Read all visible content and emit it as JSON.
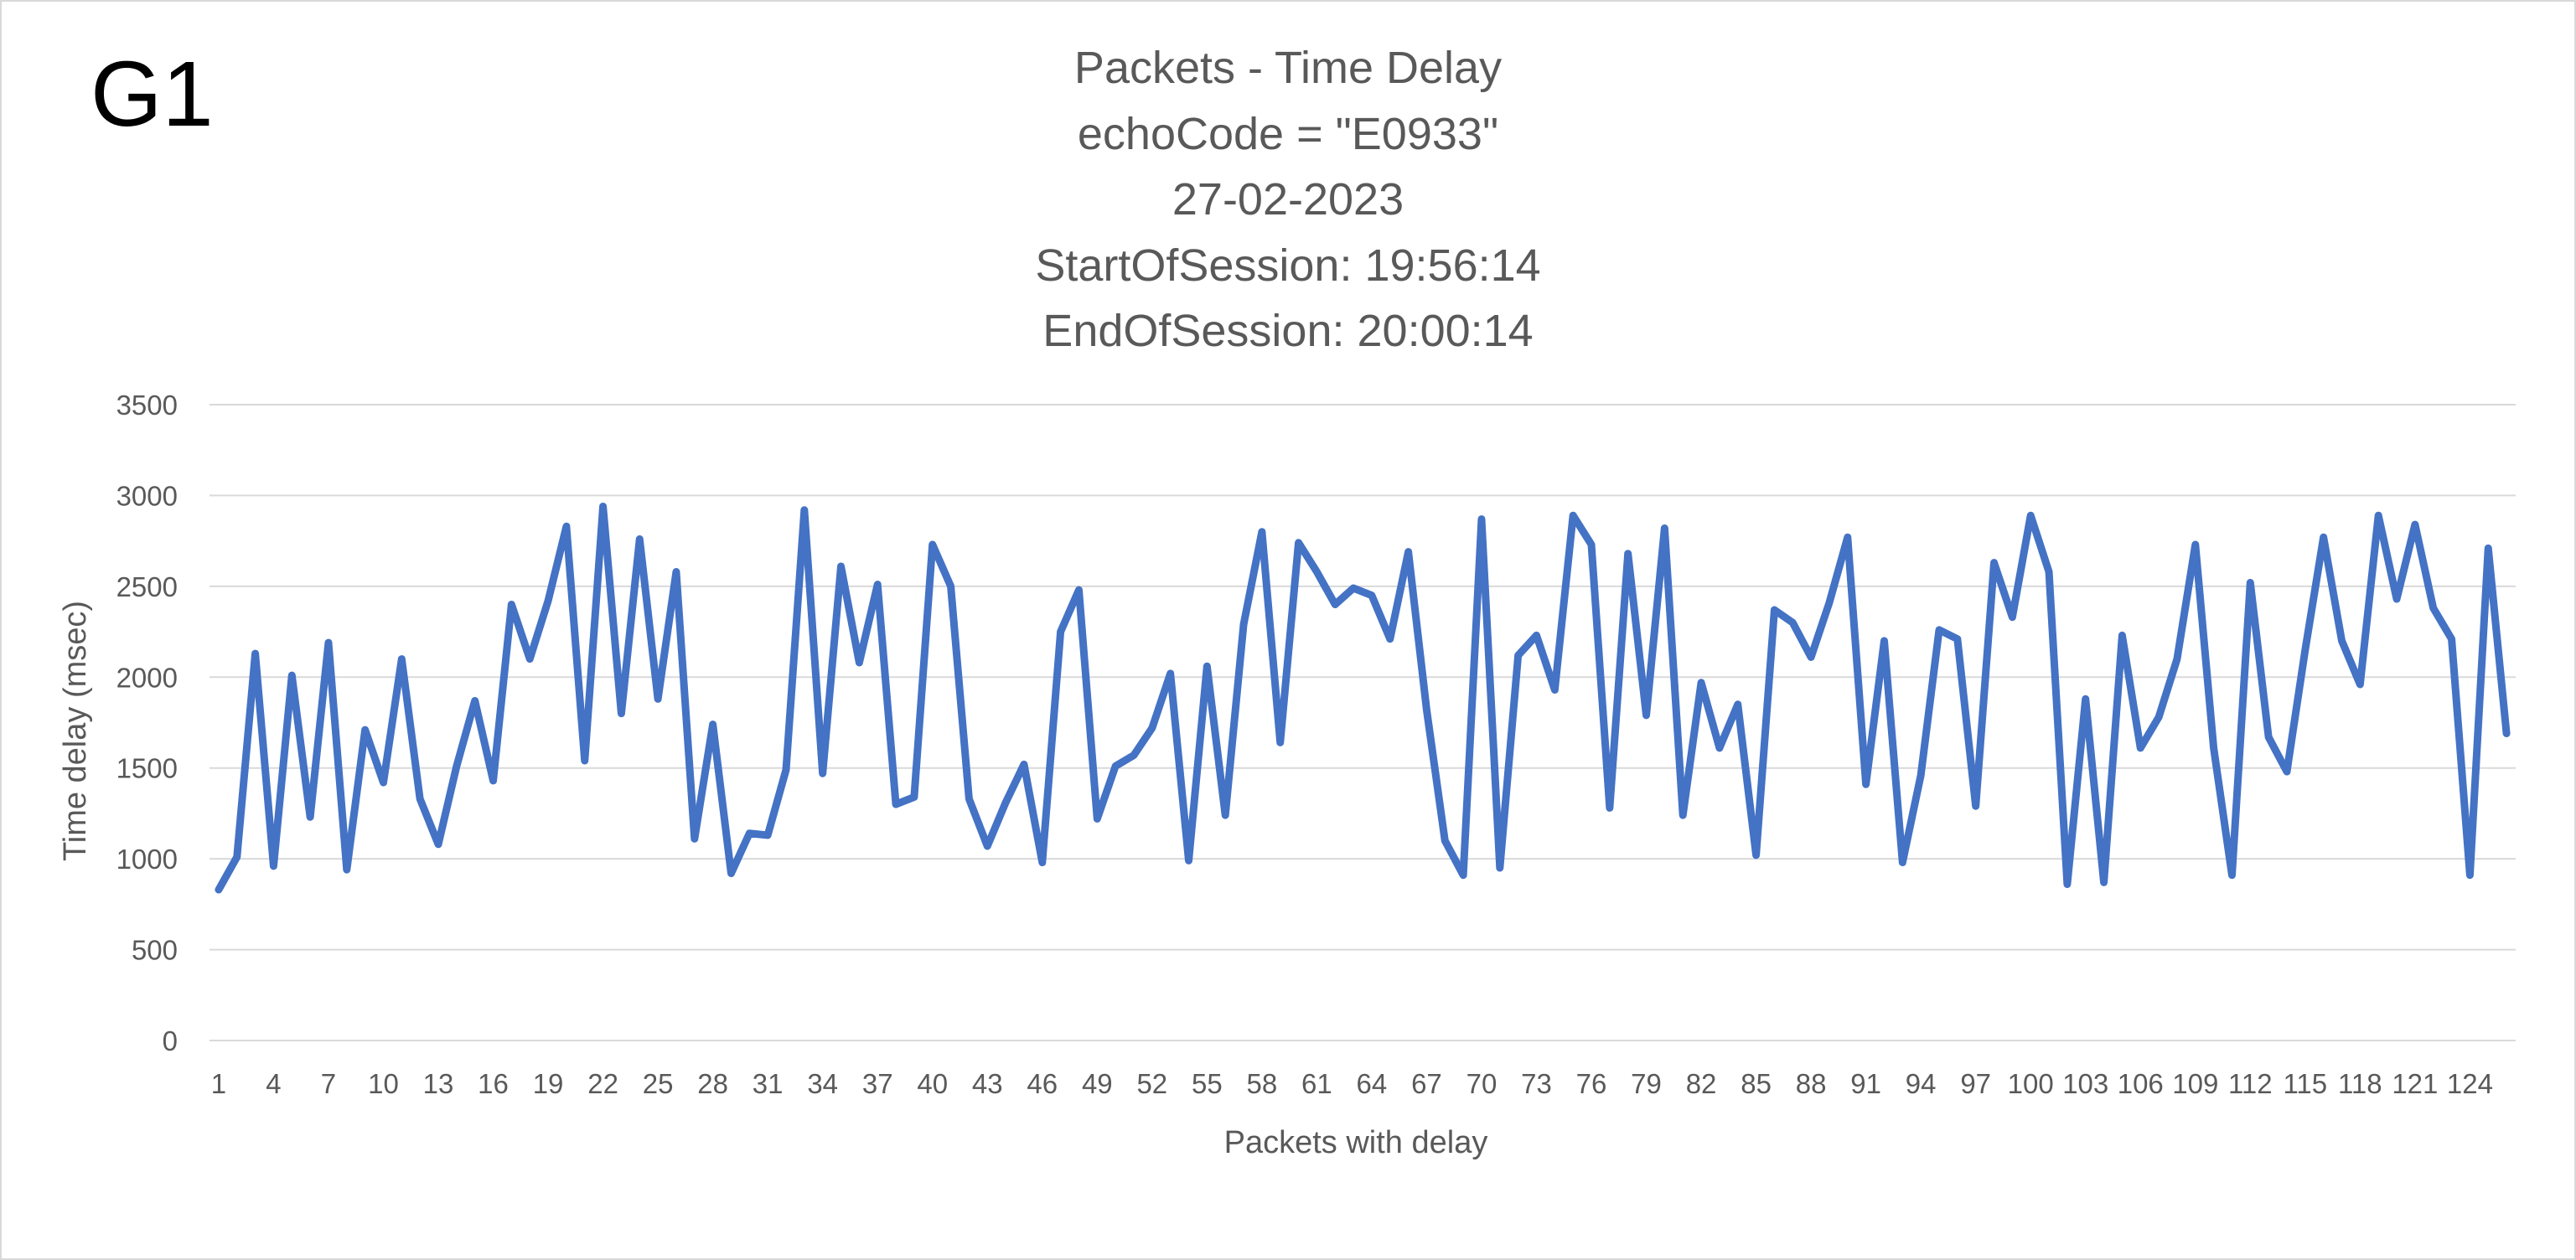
{
  "corner_label": "G1",
  "chart_data": {
    "type": "line",
    "title_lines": [
      "Packets - Time Delay",
      "echoCode = \"E0933\"",
      "27-02-2023",
      "StartOfSession: 19:56:14",
      "EndOfSession: 20:00:14"
    ],
    "xlabel": "Packets with delay",
    "ylabel": "Time delay (msec)",
    "ylim": [
      0,
      3500
    ],
    "yticks": [
      0,
      500,
      1000,
      1500,
      2000,
      2500,
      3000,
      3500
    ],
    "xticks": [
      1,
      4,
      7,
      10,
      13,
      16,
      19,
      22,
      25,
      28,
      31,
      34,
      37,
      40,
      43,
      46,
      49,
      52,
      55,
      58,
      61,
      64,
      67,
      70,
      73,
      76,
      79,
      82,
      85,
      88,
      91,
      94,
      97,
      100,
      103,
      106,
      109,
      112,
      115,
      118,
      121,
      124
    ],
    "x_count": 126,
    "grid": true,
    "series_color": "#4472c4",
    "series": [
      {
        "values": [
          830,
          1010,
          2130,
          960,
          2010,
          1230,
          2190,
          940,
          1710,
          1420,
          2100,
          1330,
          1080,
          1510,
          1870,
          1430,
          2400,
          2100,
          2420,
          2830,
          1540,
          2940,
          1800,
          2760,
          1880,
          2580,
          1110,
          1740,
          920,
          1140,
          1130,
          1490,
          2920,
          1470,
          2610,
          2080,
          2510,
          1300,
          1340,
          2730,
          2500,
          1330,
          1070,
          1310,
          1520,
          980,
          2250,
          2480,
          1220,
          1510,
          1570,
          1720,
          2020,
          990,
          2060,
          1240,
          2290,
          2800,
          1640,
          2740,
          2580,
          2400,
          2490,
          2450,
          2210,
          2690,
          1820,
          1100,
          910,
          2870,
          950,
          2120,
          2230,
          1930,
          2890,
          2730,
          1280,
          2680,
          1790,
          2820,
          1240,
          1970,
          1610,
          1850,
          1020,
          2370,
          2300,
          2110,
          2410,
          2770,
          1410,
          2200,
          980,
          1460,
          2260,
          2210,
          1290,
          2630,
          2330,
          2890,
          2580,
          860,
          1880,
          870,
          2230,
          1610,
          1780,
          2100,
          2730,
          1610,
          910,
          2520,
          1670,
          1480,
          2150,
          2770,
          2200,
          1960,
          2890,
          2430,
          2840,
          2380,
          2210,
          910,
          2710,
          1690
        ]
      }
    ]
  }
}
